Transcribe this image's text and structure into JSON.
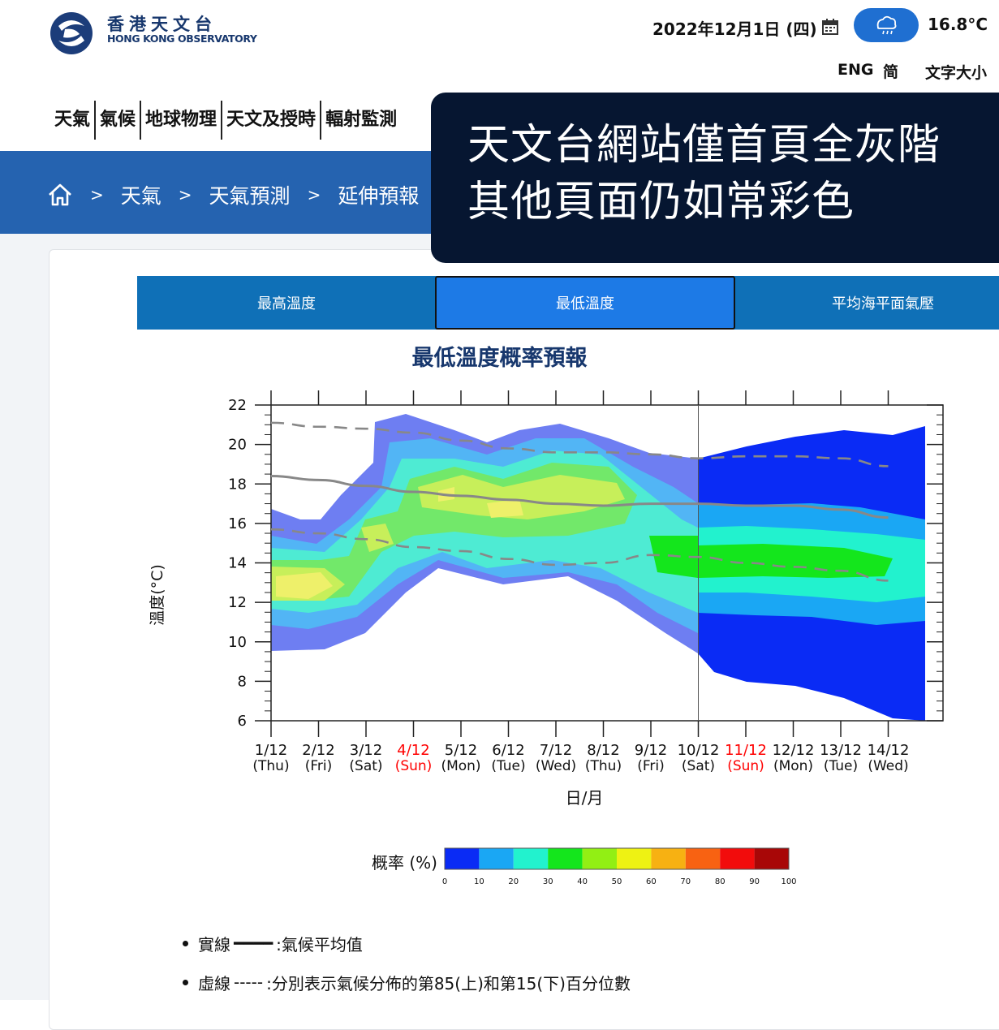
{
  "header": {
    "logo_cn": "香港天文台",
    "logo_en": "HONG KONG OBSERVATORY",
    "date": "2022年12月1日 (四)",
    "temperature": "16.8°C",
    "lang_eng": "ENG",
    "lang_simplified": "简",
    "font_size": "文字大小",
    "accent_color": "#1f6fd1"
  },
  "nav": {
    "items": [
      "天氣",
      "氣候",
      "地球物理",
      "天文及授時",
      "輻射監測"
    ]
  },
  "breadcrumb": {
    "items": [
      "天氣",
      "天氣預測",
      "延伸預報"
    ],
    "separator": ">"
  },
  "overlay": {
    "line1": "天文台網站僅首頁全灰階",
    "line2": "其他頁面仍如常彩色"
  },
  "tabs": [
    {
      "label": "最高溫度",
      "selected": false
    },
    {
      "label": "最低溫度",
      "selected": true
    },
    {
      "label": "平均海平面氣壓",
      "selected": false
    }
  ],
  "chart_data": {
    "type": "area",
    "title": "最低溫度概率預報",
    "ylabel": "溫度(°C)",
    "xlabel": "日/月",
    "ylim": [
      6,
      22
    ],
    "yticks": [
      6,
      8,
      10,
      12,
      14,
      16,
      18,
      20,
      22
    ],
    "categories": [
      "1/12",
      "2/12",
      "3/12",
      "4/12",
      "5/12",
      "6/12",
      "7/12",
      "8/12",
      "9/12",
      "10/12",
      "11/12",
      "12/12",
      "13/12",
      "14/12"
    ],
    "weekdays": [
      "(Thu)",
      "(Fri)",
      "(Sat)",
      "(Sun)",
      "(Mon)",
      "(Tue)",
      "(Wed)",
      "(Thu)",
      "(Fri)",
      "(Sat)",
      "(Sun)",
      "(Mon)",
      "(Tue)",
      "(Wed)"
    ],
    "sunday_color": "#ff0000",
    "series": [
      {
        "name": "實線",
        "style": "solid",
        "values": [
          18.4,
          18.2,
          17.9,
          17.6,
          17.4,
          17.2,
          17.0,
          16.9,
          17.0,
          17.0,
          16.9,
          16.9,
          16.7,
          16.3
        ]
      },
      {
        "name": "虛線",
        "style": "dashed",
        "values": [
          21.1,
          20.9,
          20.8,
          20.6,
          20.2,
          19.8,
          19.6,
          19.6,
          19.5,
          19.3,
          19.4,
          19.4,
          19.3,
          18.9
        ]
      },
      {
        "name": "虛線",
        "style": "dashed",
        "values": [
          15.7,
          15.5,
          15.2,
          14.8,
          14.6,
          14.2,
          13.9,
          14.0,
          14.4,
          14.3,
          14.0,
          13.8,
          13.6,
          13.1
        ]
      }
    ],
    "prob_label": "概率 (%)",
    "colorbar": {
      "ticks": [
        "0",
        "10",
        "20",
        "30",
        "40",
        "50",
        "60",
        "70",
        "80",
        "90",
        "100"
      ],
      "colors": [
        "#0a2bf5",
        "#1aa7f4",
        "#22f2ce",
        "#14e61c",
        "#92ef14",
        "#eef213",
        "#f7b112",
        "#f86212",
        "#f20c0c",
        "#a80707"
      ]
    },
    "notes": [
      {
        "label": "實線",
        "sample": "━━━━",
        "text": ":氣候平均值"
      },
      {
        "label": "虛線",
        "sample": "-----",
        "text": ":分別表示氣候分佈的第85(上)和第15(下)百分位數"
      }
    ]
  }
}
